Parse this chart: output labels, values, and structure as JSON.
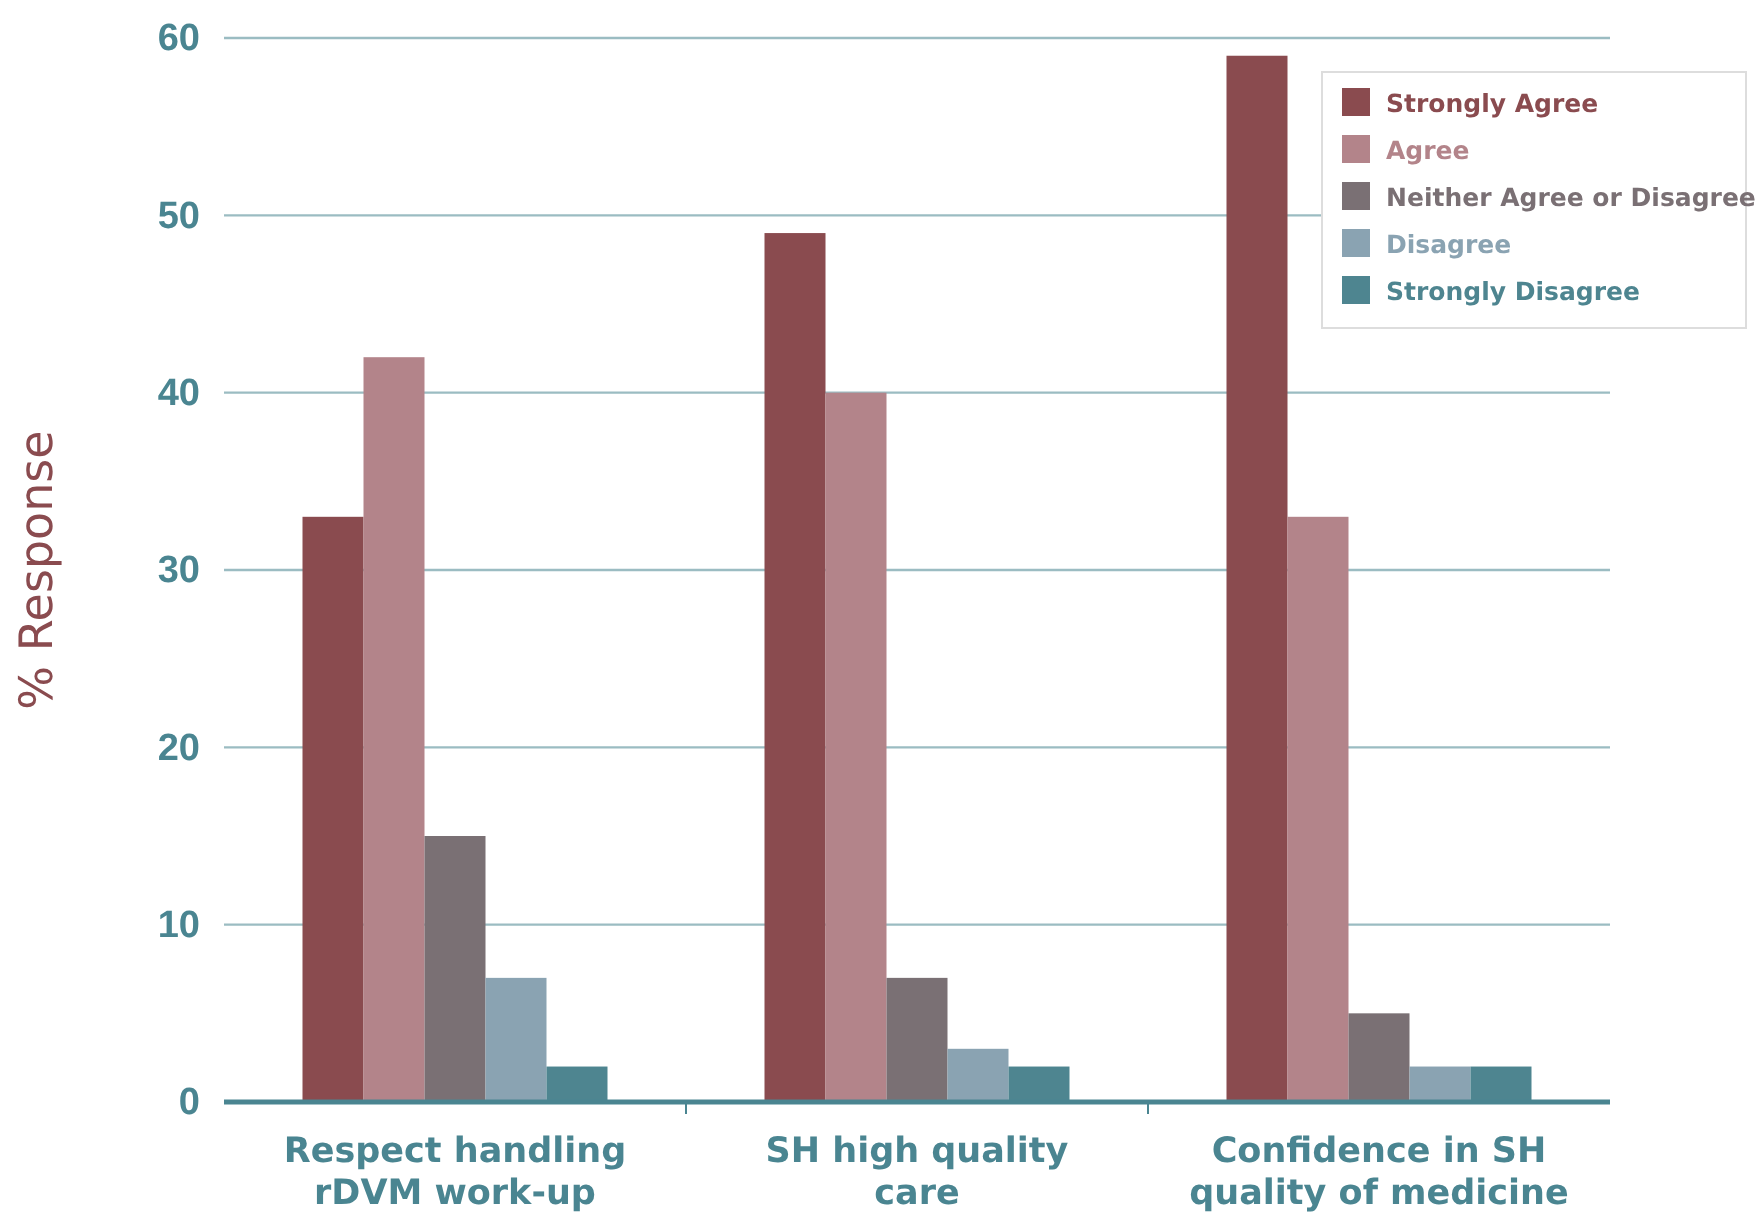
{
  "chart_data": {
    "type": "bar",
    "ylabel": "% Response",
    "categories": [
      "Respect handling rDVM work-up",
      "SH high quality care",
      "Confidence in SH quality of medicine"
    ],
    "series": [
      {
        "name": "Strongly Agree",
        "color": "#8a4b4f",
        "values": [
          33,
          49,
          59
        ]
      },
      {
        "name": "Agree",
        "color": "#b3848a",
        "values": [
          42,
          40,
          33
        ]
      },
      {
        "name": "Neither Agree or Disagree",
        "color": "#7a7074",
        "values": [
          15,
          7,
          5
        ]
      },
      {
        "name": "Disagree",
        "color": "#8aa3b2",
        "values": [
          7,
          3,
          2
        ]
      },
      {
        "name": "Strongly Disagree",
        "color": "#4e8590",
        "values": [
          2,
          2,
          2
        ]
      }
    ],
    "ylim": [
      0,
      60
    ],
    "yticks": [
      0,
      10,
      20,
      30,
      40,
      50,
      60
    ],
    "grid": "y",
    "legend": "top right"
  }
}
